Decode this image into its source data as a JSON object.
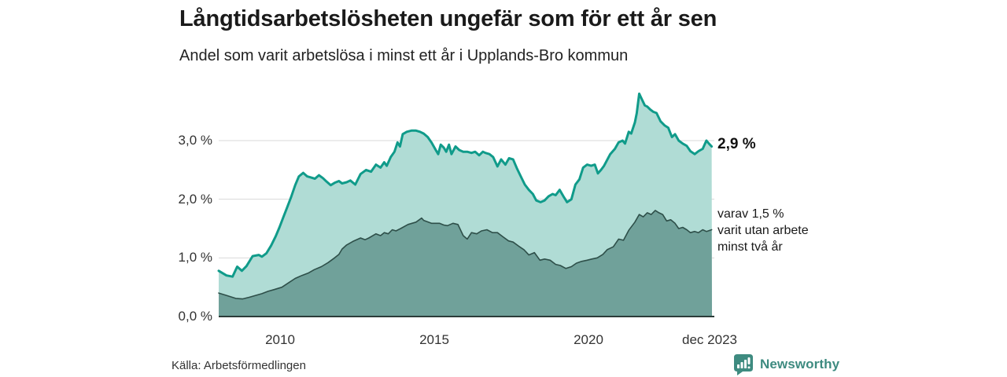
{
  "header": {
    "title": "Långtidsarbetslösheten ungefär som för ett år sen",
    "subtitle": "Andel som varit arbetslösa i minst ett år i Upplands-Bro kommun"
  },
  "chart_data": {
    "type": "area",
    "title": "Långtidsarbetslösheten ungefär som för ett år sen",
    "subtitle": "Andel som varit arbetslösa i minst ett år i Upplands-Bro kommun",
    "unit": "%",
    "grid": true,
    "grid_color": "#d9d9d9",
    "axis_color": "#2c3b39",
    "x_axis": {
      "range": [
        2008,
        2024
      ],
      "ticks": [
        {
          "label": "2010",
          "t": 2010
        },
        {
          "label": "2015",
          "t": 2015
        },
        {
          "label": "2020",
          "t": 2020
        },
        {
          "label": "dec 2023",
          "t": 2023.92
        }
      ]
    },
    "y_axis": {
      "range": [
        0,
        4
      ],
      "ticks": [
        {
          "label": "0,0 %",
          "v": 0
        },
        {
          "label": "1,0 %",
          "v": 1
        },
        {
          "label": "2,0 %",
          "v": 2
        },
        {
          "label": "3,0 %",
          "v": 3
        }
      ]
    },
    "series": [
      {
        "name": "Andel som varit arbetslösa minst ett år",
        "color": "#109b8a",
        "fill": "#b0dcd5",
        "line_width": 3,
        "latest_value": 2.9,
        "points": [
          [
            2008.0,
            0.78
          ],
          [
            2008.25,
            0.7
          ],
          [
            2008.45,
            0.68
          ],
          [
            2008.6,
            0.85
          ],
          [
            2008.75,
            0.78
          ],
          [
            2008.9,
            0.86
          ],
          [
            2009.1,
            1.03
          ],
          [
            2009.3,
            1.05
          ],
          [
            2009.4,
            1.02
          ],
          [
            2009.55,
            1.08
          ],
          [
            2009.7,
            1.21
          ],
          [
            2009.85,
            1.37
          ],
          [
            2009.97,
            1.52
          ],
          [
            2010.1,
            1.7
          ],
          [
            2010.22,
            1.86
          ],
          [
            2010.35,
            2.04
          ],
          [
            2010.48,
            2.24
          ],
          [
            2010.6,
            2.39
          ],
          [
            2010.74,
            2.45
          ],
          [
            2010.87,
            2.39
          ],
          [
            2011.0,
            2.37
          ],
          [
            2011.12,
            2.35
          ],
          [
            2011.25,
            2.41
          ],
          [
            2011.38,
            2.36
          ],
          [
            2011.5,
            2.3
          ],
          [
            2011.63,
            2.24
          ],
          [
            2011.76,
            2.28
          ],
          [
            2011.9,
            2.31
          ],
          [
            2012.0,
            2.27
          ],
          [
            2012.15,
            2.29
          ],
          [
            2012.27,
            2.32
          ],
          [
            2012.43,
            2.25
          ],
          [
            2012.6,
            2.43
          ],
          [
            2012.78,
            2.5
          ],
          [
            2012.94,
            2.47
          ],
          [
            2013.1,
            2.59
          ],
          [
            2013.25,
            2.54
          ],
          [
            2013.37,
            2.63
          ],
          [
            2013.45,
            2.57
          ],
          [
            2013.58,
            2.72
          ],
          [
            2013.7,
            2.81
          ],
          [
            2013.8,
            2.97
          ],
          [
            2013.88,
            2.9
          ],
          [
            2013.97,
            3.11
          ],
          [
            2014.1,
            3.15
          ],
          [
            2014.25,
            3.17
          ],
          [
            2014.4,
            3.17
          ],
          [
            2014.53,
            3.15
          ],
          [
            2014.65,
            3.12
          ],
          [
            2014.78,
            3.06
          ],
          [
            2014.9,
            2.97
          ],
          [
            2015.04,
            2.84
          ],
          [
            2015.12,
            2.77
          ],
          [
            2015.2,
            2.93
          ],
          [
            2015.3,
            2.88
          ],
          [
            2015.38,
            2.81
          ],
          [
            2015.47,
            2.93
          ],
          [
            2015.55,
            2.77
          ],
          [
            2015.68,
            2.9
          ],
          [
            2015.8,
            2.84
          ],
          [
            2015.93,
            2.81
          ],
          [
            2016.06,
            2.81
          ],
          [
            2016.2,
            2.79
          ],
          [
            2016.32,
            2.81
          ],
          [
            2016.45,
            2.75
          ],
          [
            2016.57,
            2.81
          ],
          [
            2016.65,
            2.79
          ],
          [
            2016.78,
            2.77
          ],
          [
            2016.9,
            2.72
          ],
          [
            2017.04,
            2.56
          ],
          [
            2017.16,
            2.68
          ],
          [
            2017.3,
            2.59
          ],
          [
            2017.42,
            2.7
          ],
          [
            2017.55,
            2.68
          ],
          [
            2017.68,
            2.52
          ],
          [
            2017.8,
            2.39
          ],
          [
            2017.93,
            2.25
          ],
          [
            2018.06,
            2.16
          ],
          [
            2018.19,
            2.09
          ],
          [
            2018.3,
            1.98
          ],
          [
            2018.44,
            1.95
          ],
          [
            2018.57,
            1.98
          ],
          [
            2018.7,
            2.05
          ],
          [
            2018.83,
            2.09
          ],
          [
            2018.93,
            2.07
          ],
          [
            2019.06,
            2.16
          ],
          [
            2019.18,
            2.05
          ],
          [
            2019.3,
            1.95
          ],
          [
            2019.44,
            2.0
          ],
          [
            2019.57,
            2.25
          ],
          [
            2019.7,
            2.34
          ],
          [
            2019.82,
            2.54
          ],
          [
            2019.95,
            2.59
          ],
          [
            2020.08,
            2.57
          ],
          [
            2020.2,
            2.59
          ],
          [
            2020.3,
            2.44
          ],
          [
            2020.4,
            2.5
          ],
          [
            2020.5,
            2.57
          ],
          [
            2020.7,
            2.77
          ],
          [
            2020.85,
            2.86
          ],
          [
            2020.97,
            2.97
          ],
          [
            2021.1,
            3.0
          ],
          [
            2021.18,
            2.95
          ],
          [
            2021.3,
            3.15
          ],
          [
            2021.38,
            3.12
          ],
          [
            2021.5,
            3.31
          ],
          [
            2021.56,
            3.47
          ],
          [
            2021.64,
            3.8
          ],
          [
            2021.74,
            3.69
          ],
          [
            2021.82,
            3.6
          ],
          [
            2021.9,
            3.58
          ],
          [
            2022.0,
            3.53
          ],
          [
            2022.1,
            3.49
          ],
          [
            2022.2,
            3.47
          ],
          [
            2022.33,
            3.33
          ],
          [
            2022.46,
            3.26
          ],
          [
            2022.58,
            3.22
          ],
          [
            2022.7,
            3.06
          ],
          [
            2022.8,
            3.11
          ],
          [
            2022.92,
            3.0
          ],
          [
            2023.05,
            2.95
          ],
          [
            2023.18,
            2.91
          ],
          [
            2023.3,
            2.82
          ],
          [
            2023.44,
            2.77
          ],
          [
            2023.56,
            2.82
          ],
          [
            2023.7,
            2.86
          ],
          [
            2023.82,
            3.0
          ],
          [
            2023.9,
            2.95
          ],
          [
            2023.99,
            2.9
          ]
        ]
      },
      {
        "name": "varav utan arbete minst två år",
        "color": "#2e4f49",
        "fill": "#70a19a",
        "line_width": 1.6,
        "latest_value": 1.5,
        "points": [
          [
            2008.0,
            0.4
          ],
          [
            2008.25,
            0.36
          ],
          [
            2008.55,
            0.31
          ],
          [
            2008.77,
            0.3
          ],
          [
            2009.0,
            0.33
          ],
          [
            2009.2,
            0.36
          ],
          [
            2009.4,
            0.39
          ],
          [
            2009.6,
            0.43
          ],
          [
            2009.8,
            0.46
          ],
          [
            2010.05,
            0.5
          ],
          [
            2010.25,
            0.57
          ],
          [
            2010.48,
            0.65
          ],
          [
            2010.7,
            0.7
          ],
          [
            2010.9,
            0.74
          ],
          [
            2011.1,
            0.8
          ],
          [
            2011.33,
            0.85
          ],
          [
            2011.55,
            0.92
          ],
          [
            2011.76,
            1.0
          ],
          [
            2011.9,
            1.06
          ],
          [
            2012.0,
            1.15
          ],
          [
            2012.15,
            1.22
          ],
          [
            2012.35,
            1.28
          ],
          [
            2012.6,
            1.34
          ],
          [
            2012.75,
            1.31
          ],
          [
            2012.87,
            1.34
          ],
          [
            2013.1,
            1.41
          ],
          [
            2013.25,
            1.38
          ],
          [
            2013.37,
            1.43
          ],
          [
            2013.5,
            1.41
          ],
          [
            2013.63,
            1.48
          ],
          [
            2013.75,
            1.46
          ],
          [
            2013.9,
            1.5
          ],
          [
            2014.14,
            1.57
          ],
          [
            2014.4,
            1.61
          ],
          [
            2014.58,
            1.68
          ],
          [
            2014.65,
            1.64
          ],
          [
            2014.9,
            1.59
          ],
          [
            2015.16,
            1.59
          ],
          [
            2015.3,
            1.56
          ],
          [
            2015.42,
            1.55
          ],
          [
            2015.6,
            1.59
          ],
          [
            2015.76,
            1.57
          ],
          [
            2015.93,
            1.38
          ],
          [
            2016.06,
            1.32
          ],
          [
            2016.2,
            1.43
          ],
          [
            2016.37,
            1.41
          ],
          [
            2016.52,
            1.46
          ],
          [
            2016.7,
            1.48
          ],
          [
            2016.88,
            1.43
          ],
          [
            2017.04,
            1.43
          ],
          [
            2017.22,
            1.36
          ],
          [
            2017.4,
            1.29
          ],
          [
            2017.55,
            1.27
          ],
          [
            2017.73,
            1.2
          ],
          [
            2017.9,
            1.14
          ],
          [
            2018.06,
            1.05
          ],
          [
            2018.24,
            1.09
          ],
          [
            2018.42,
            0.96
          ],
          [
            2018.57,
            0.98
          ],
          [
            2018.75,
            0.96
          ],
          [
            2018.93,
            0.89
          ],
          [
            2019.08,
            0.87
          ],
          [
            2019.26,
            0.82
          ],
          [
            2019.44,
            0.85
          ],
          [
            2019.6,
            0.91
          ],
          [
            2019.77,
            0.94
          ],
          [
            2019.95,
            0.96
          ],
          [
            2020.1,
            0.98
          ],
          [
            2020.28,
            1.0
          ],
          [
            2020.46,
            1.06
          ],
          [
            2020.6,
            1.14
          ],
          [
            2020.8,
            1.19
          ],
          [
            2020.97,
            1.32
          ],
          [
            2021.13,
            1.3
          ],
          [
            2021.3,
            1.47
          ],
          [
            2021.5,
            1.61
          ],
          [
            2021.64,
            1.74
          ],
          [
            2021.77,
            1.7
          ],
          [
            2021.9,
            1.77
          ],
          [
            2022.03,
            1.74
          ],
          [
            2022.16,
            1.81
          ],
          [
            2022.28,
            1.77
          ],
          [
            2022.4,
            1.74
          ],
          [
            2022.53,
            1.63
          ],
          [
            2022.66,
            1.65
          ],
          [
            2022.8,
            1.59
          ],
          [
            2022.92,
            1.5
          ],
          [
            2023.05,
            1.52
          ],
          [
            2023.18,
            1.48
          ],
          [
            2023.3,
            1.43
          ],
          [
            2023.44,
            1.45
          ],
          [
            2023.56,
            1.43
          ],
          [
            2023.7,
            1.48
          ],
          [
            2023.82,
            1.45
          ],
          [
            2023.99,
            1.48
          ]
        ]
      }
    ],
    "annotations": {
      "latest_total": "2,9 %",
      "subset_lines": [
        "varav 1,5 %",
        "varit utan arbete",
        "minst två år"
      ]
    }
  },
  "footer": {
    "source": "Källa: Arbetsförmedlingen",
    "brand": "Newsworthy"
  },
  "colors": {
    "accent_teal": "#109b8a",
    "light_fill": "#b0dcd5",
    "dark_fill": "#70a19a",
    "dark_line": "#2e4f49",
    "grid": "#d9d9d9",
    "axis": "#2c3b39",
    "brand_teal": "#3e8b80"
  }
}
